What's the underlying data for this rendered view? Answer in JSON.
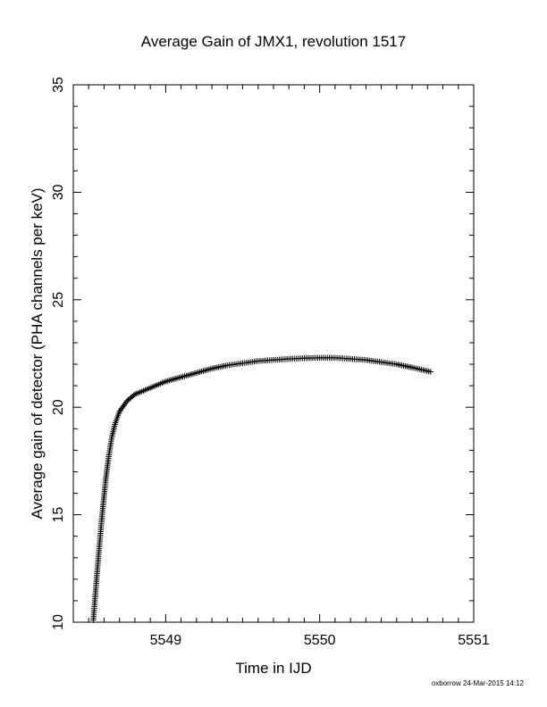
{
  "chart_data": {
    "type": "scatter",
    "title": "Average Gain of JMX1, revolution 1517",
    "xlabel": "Time in IJD",
    "ylabel": "Average gain of detector (PHA channels per keV)",
    "xlim": [
      5548.4,
      5551
    ],
    "ylim": [
      10,
      35
    ],
    "x_ticks": [
      {
        "value": 5549,
        "label": "5549"
      },
      {
        "value": 5550,
        "label": "5550"
      },
      {
        "value": 5551,
        "label": "5551"
      }
    ],
    "y_ticks": [
      {
        "value": 10,
        "label": "10"
      },
      {
        "value": 15,
        "label": "15"
      },
      {
        "value": 20,
        "label": "20"
      },
      {
        "value": 25,
        "label": "25"
      },
      {
        "value": 30,
        "label": "30"
      },
      {
        "value": 35,
        "label": "35"
      }
    ],
    "marker": "plus",
    "grid": false,
    "series": [
      {
        "x": [
          5548.53,
          5548.55,
          5548.57,
          5548.59,
          5548.61,
          5548.63,
          5548.65,
          5548.67,
          5548.7,
          5548.75,
          5548.8,
          5548.9,
          5549.0,
          5549.1,
          5549.2,
          5549.3,
          5549.4,
          5549.5,
          5549.6,
          5549.7,
          5549.8,
          5549.9,
          5550.0,
          5550.1,
          5550.2,
          5550.3,
          5550.4,
          5550.5,
          5550.6,
          5550.72
        ],
        "y": [
          10.1,
          11.9,
          13.6,
          15.2,
          16.6,
          17.7,
          18.6,
          19.2,
          19.8,
          20.3,
          20.6,
          20.9,
          21.2,
          21.4,
          21.6,
          21.8,
          21.95,
          22.05,
          22.15,
          22.2,
          22.25,
          22.28,
          22.3,
          22.3,
          22.25,
          22.2,
          22.1,
          22.0,
          21.85,
          21.65
        ]
      }
    ]
  },
  "footer": {
    "stamp": "oxborrow 24-Mar-2015 14:12"
  }
}
